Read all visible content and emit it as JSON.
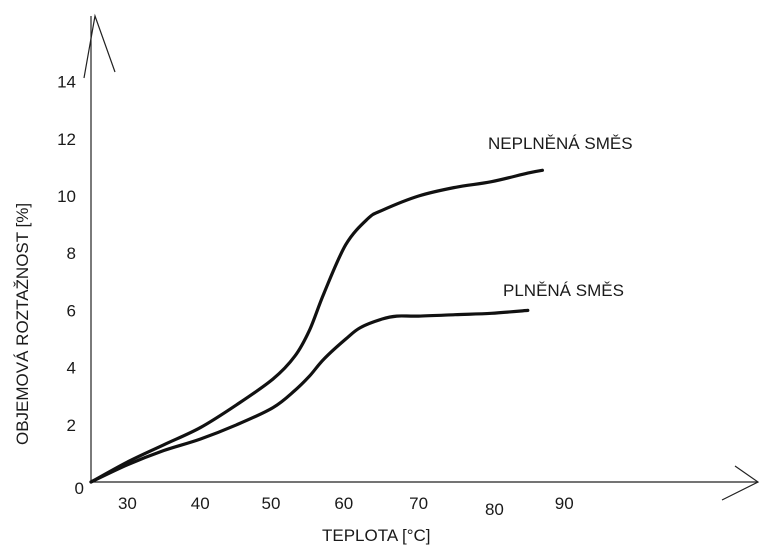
{
  "chart_data": {
    "type": "line",
    "xlabel": "TEPLOTA [°C]",
    "ylabel": "OBJEMOVÁ ROZTAŽNOST [%]",
    "x_ticks": [
      "30",
      "40",
      "50",
      "60",
      "70",
      "80",
      "90"
    ],
    "y_ticks": [
      "0",
      "2",
      "4",
      "6",
      "8",
      "10",
      "12",
      "14"
    ],
    "xlim": [
      25,
      95
    ],
    "ylim": [
      0,
      14
    ],
    "grid": false,
    "legend": "none (series labelled directly on curves)",
    "series": [
      {
        "name": "NEPLNĚNÁ SMĚS",
        "x": [
          25,
          30,
          35,
          40,
          45,
          50,
          53,
          55,
          57,
          60,
          63,
          65,
          70,
          75,
          80,
          85,
          87
        ],
        "y": [
          0,
          0.7,
          1.3,
          1.9,
          2.7,
          3.6,
          4.4,
          5.3,
          6.6,
          8.3,
          9.2,
          9.5,
          10.0,
          10.3,
          10.5,
          10.8,
          10.9
        ]
      },
      {
        "name": "PLNĚNÁ SMĚS",
        "x": [
          25,
          30,
          35,
          40,
          45,
          50,
          53,
          55,
          57,
          60,
          62,
          65,
          67,
          70,
          75,
          80,
          85
        ],
        "y": [
          0,
          0.6,
          1.1,
          1.5,
          2.0,
          2.6,
          3.2,
          3.7,
          4.3,
          5.0,
          5.4,
          5.7,
          5.8,
          5.8,
          5.85,
          5.9,
          6.0
        ]
      }
    ]
  }
}
